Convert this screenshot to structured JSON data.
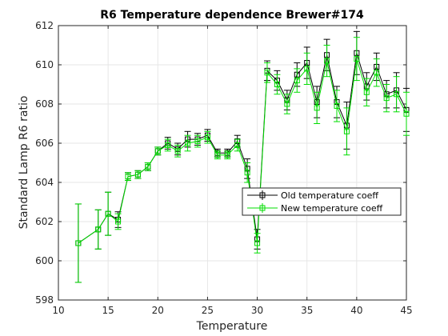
{
  "chart_data": {
    "type": "line",
    "title": "R6 Temperature dependence Brewer#174",
    "xlabel": "Temperature",
    "ylabel": "Standard Lamp R6 ratio",
    "xlim": [
      10,
      45
    ],
    "ylim": [
      598,
      612
    ],
    "xticks": [
      10,
      15,
      20,
      25,
      30,
      35,
      40,
      45
    ],
    "yticks": [
      598,
      600,
      602,
      604,
      606,
      608,
      610,
      612
    ],
    "grid": true,
    "legend_position": "center-right",
    "series": [
      {
        "name": "Old temperature coeff",
        "color": "#000000",
        "marker": "square",
        "x": [
          12,
          14,
          15,
          16,
          17,
          18,
          19,
          20,
          21,
          22,
          23,
          24,
          25,
          26,
          27,
          28,
          29,
          30,
          31,
          32,
          33,
          34,
          35,
          36,
          37,
          38,
          39,
          40,
          41,
          42,
          43,
          44,
          45
        ],
        "y": [
          600.9,
          601.6,
          602.4,
          602.1,
          604.3,
          604.4,
          604.8,
          605.6,
          606.0,
          605.7,
          606.2,
          606.2,
          606.4,
          605.5,
          605.5,
          606.1,
          604.7,
          601.1,
          609.7,
          609.2,
          608.2,
          609.5,
          610.1,
          608.1,
          610.5,
          608.1,
          606.9,
          610.6,
          608.9,
          609.9,
          608.5,
          608.7,
          607.7
        ],
        "err": [
          2.0,
          1.0,
          1.1,
          0.4,
          0.2,
          0.2,
          0.2,
          0.2,
          0.3,
          0.3,
          0.4,
          0.3,
          0.3,
          0.2,
          0.2,
          0.3,
          0.5,
          0.5,
          0.5,
          0.5,
          0.5,
          0.6,
          0.8,
          0.8,
          0.8,
          0.8,
          1.2,
          1.1,
          0.7,
          0.7,
          0.7,
          0.9,
          1.1
        ]
      },
      {
        "name": "New temperature coeff",
        "color": "#00dd00",
        "marker": "square",
        "x": [
          12,
          14,
          15,
          16,
          17,
          18,
          19,
          20,
          21,
          22,
          23,
          24,
          25,
          26,
          27,
          28,
          29,
          30,
          31,
          32,
          33,
          34,
          35,
          36,
          37,
          38,
          39,
          40,
          41,
          42,
          43,
          44,
          45
        ],
        "y": [
          600.9,
          601.6,
          602.4,
          602.0,
          604.3,
          604.4,
          604.8,
          605.6,
          605.9,
          605.6,
          606.0,
          606.1,
          606.3,
          605.4,
          605.4,
          605.9,
          604.5,
          600.9,
          609.6,
          609.0,
          608.0,
          609.2,
          609.8,
          607.8,
          610.2,
          607.9,
          606.6,
          610.3,
          608.6,
          609.6,
          608.3,
          608.5,
          607.5
        ],
        "err": [
          2.0,
          1.0,
          1.1,
          0.4,
          0.2,
          0.2,
          0.2,
          0.2,
          0.3,
          0.3,
          0.4,
          0.3,
          0.3,
          0.2,
          0.2,
          0.3,
          0.5,
          0.5,
          0.5,
          0.5,
          0.5,
          0.6,
          0.8,
          0.8,
          0.8,
          0.8,
          1.2,
          1.1,
          0.7,
          0.7,
          0.7,
          0.9,
          1.1
        ]
      }
    ]
  }
}
